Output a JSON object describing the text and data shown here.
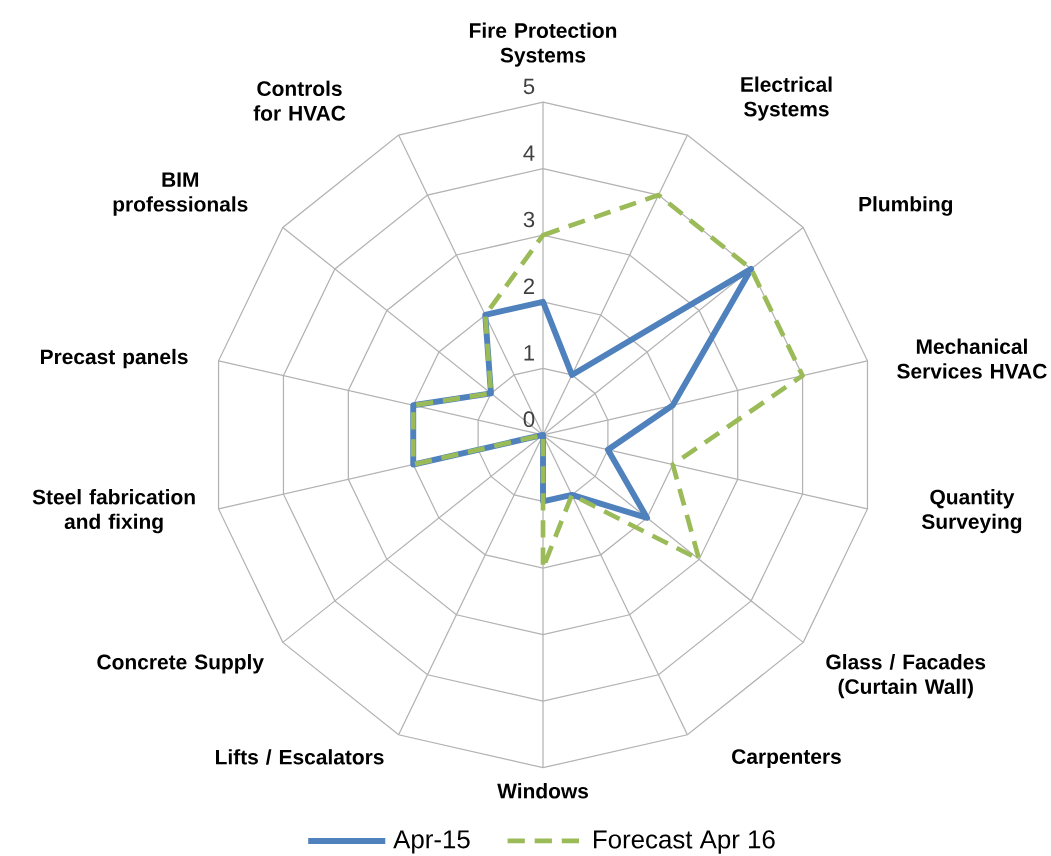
{
  "chart_data": {
    "type": "radar",
    "categories": [
      "Fire Protection Systems",
      "Electrical Systems",
      "Plumbing",
      "Mechanical Services HVAC",
      "Quantity Surveying",
      "Glass / Facades (Curtain Wall)",
      "Carpenters",
      "Windows",
      "Lifts / Escalators",
      "Concrete Supply",
      "Steel fabrication and fixing",
      "Precast panels",
      "BIM professionals",
      "Controls for HVAC"
    ],
    "series": [
      {
        "name": "Apr-15",
        "color": "#4f81bd",
        "line_style": "solid",
        "values": [
          2,
          1,
          4,
          2,
          1,
          2,
          1,
          1,
          0,
          0,
          2,
          2,
          1,
          2
        ]
      },
      {
        "name": "Forecast Apr 16",
        "color": "#9bbb59",
        "line_style": "dashed",
        "values": [
          3,
          4,
          4,
          4,
          2,
          3,
          1,
          2,
          0,
          0,
          2,
          2,
          1,
          2
        ]
      }
    ],
    "ylim": [
      0,
      5
    ],
    "yticks": [
      0,
      1,
      2,
      3,
      4,
      5
    ],
    "grid": true,
    "legend": "bottom",
    "marker": "none"
  }
}
